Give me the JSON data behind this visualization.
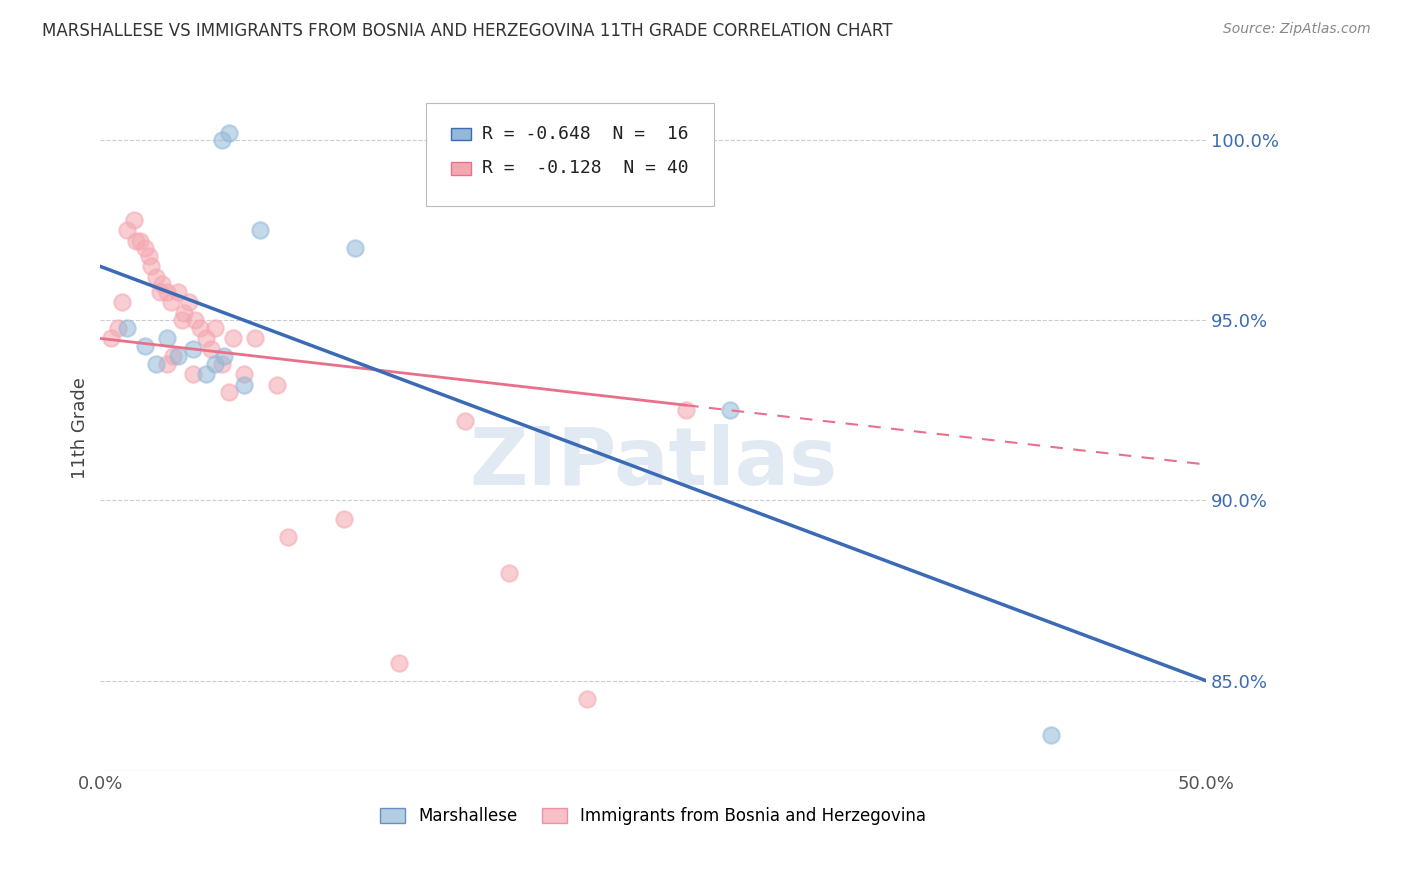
{
  "title": "MARSHALLESE VS IMMIGRANTS FROM BOSNIA AND HERZEGOVINA 11TH GRADE CORRELATION CHART",
  "source": "Source: ZipAtlas.com",
  "ylabel": "11th Grade",
  "xlim": [
    0.0,
    50.0
  ],
  "ylim": [
    82.5,
    101.5
  ],
  "yticks": [
    85.0,
    90.0,
    95.0,
    100.0
  ],
  "ytick_labels": [
    "85.0%",
    "90.0%",
    "95.0%",
    "100.0%"
  ],
  "xticks": [
    0.0,
    10.0,
    20.0,
    30.0,
    40.0,
    50.0
  ],
  "xtick_labels": [
    "0.0%",
    "",
    "",
    "",
    "",
    "50.0%"
  ],
  "blue_R": -0.648,
  "blue_N": 16,
  "pink_R": -0.128,
  "pink_N": 40,
  "blue_color": "#93B8D8",
  "pink_color": "#F4A7B0",
  "blue_line_color": "#3B6BB5",
  "pink_line_color": "#E8708A",
  "blue_scatter_x": [
    5.5,
    5.8,
    7.2,
    11.5,
    1.2,
    2.0,
    2.5,
    3.5,
    4.2,
    4.8,
    5.2,
    5.6,
    43.0,
    28.5,
    3.0,
    6.5
  ],
  "blue_scatter_y": [
    100.0,
    100.2,
    97.5,
    97.0,
    94.8,
    94.3,
    93.8,
    94.0,
    94.2,
    93.5,
    93.8,
    94.0,
    83.5,
    92.5,
    94.5,
    93.2
  ],
  "pink_scatter_x": [
    0.5,
    0.8,
    1.2,
    1.5,
    1.8,
    2.0,
    2.2,
    2.5,
    2.8,
    3.0,
    3.2,
    3.5,
    3.8,
    4.0,
    4.3,
    4.8,
    5.0,
    5.5,
    6.0,
    7.0,
    8.0,
    3.3,
    5.2,
    2.3,
    3.7,
    4.5,
    1.0,
    1.6,
    2.7,
    3.0,
    4.2,
    5.8,
    6.5,
    16.5,
    26.5,
    11.0,
    18.5,
    8.5,
    13.5,
    22.0
  ],
  "pink_scatter_y": [
    94.5,
    94.8,
    97.5,
    97.8,
    97.2,
    97.0,
    96.8,
    96.2,
    96.0,
    95.8,
    95.5,
    95.8,
    95.2,
    95.5,
    95.0,
    94.5,
    94.2,
    93.8,
    94.5,
    94.5,
    93.2,
    94.0,
    94.8,
    96.5,
    95.0,
    94.8,
    95.5,
    97.2,
    95.8,
    93.8,
    93.5,
    93.0,
    93.5,
    92.2,
    92.5,
    89.5,
    88.0,
    89.0,
    85.5,
    84.5
  ],
  "blue_line_x0": 0.0,
  "blue_line_y0": 96.5,
  "blue_line_x1": 50.0,
  "blue_line_y1": 85.0,
  "pink_line_x0": 0.0,
  "pink_line_y0": 94.5,
  "pink_line_x1": 50.0,
  "pink_line_y1": 91.0,
  "pink_solid_x_end": 26.5,
  "watermark": "ZIPatlas",
  "watermark_color": "#C5D5E8",
  "background_color": "#FFFFFF",
  "grid_color": "#CCCCCC",
  "legend_blue_text": "R = -0.648  N =  16",
  "legend_pink_text": "R =  -0.128  N = 40"
}
